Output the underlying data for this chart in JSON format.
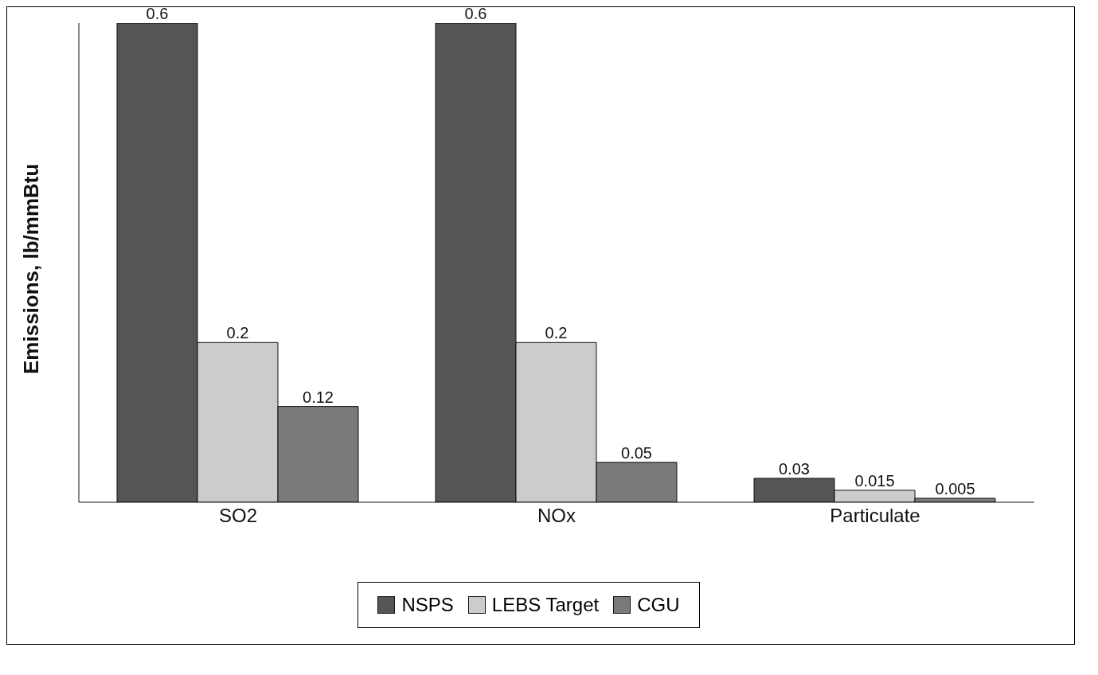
{
  "chart_data": {
    "type": "bar",
    "ylabel": "Emissions, lb/mmBtu",
    "categories": [
      "SO2",
      "NOx",
      "Particulate"
    ],
    "series": [
      {
        "name": "NSPS",
        "color": "#555555",
        "values": [
          0.6,
          0.6,
          0.03
        ]
      },
      {
        "name": "LEBS Target",
        "color": "#cccccc",
        "values": [
          0.2,
          0.2,
          0.015
        ]
      },
      {
        "name": "CGU",
        "color": "#7a7a7a",
        "values": [
          0.12,
          0.05,
          0.005
        ]
      }
    ],
    "tick_labels": "x",
    "data_labels": true,
    "legend": "bottom"
  }
}
